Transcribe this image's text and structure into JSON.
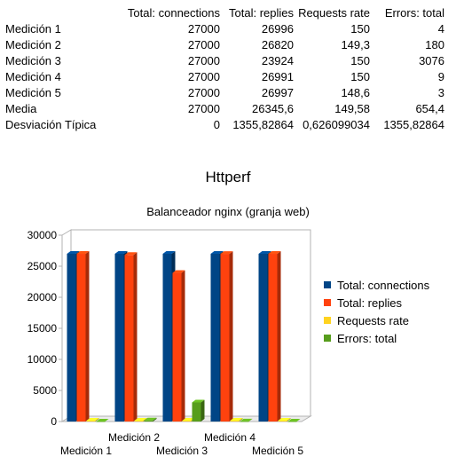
{
  "table": {
    "headers": [
      "",
      "Total: connections",
      "Total: replies",
      "Requests rate",
      "Errors: total"
    ],
    "rows": [
      [
        "Medición 1",
        "27000",
        "26996",
        "150",
        "4"
      ],
      [
        "Medición 2",
        "27000",
        "26820",
        "149,3",
        "180"
      ],
      [
        "Medición 3",
        "27000",
        "23924",
        "150",
        "3076"
      ],
      [
        "Medición 4",
        "27000",
        "26991",
        "150",
        "9"
      ],
      [
        "Medición 5",
        "27000",
        "26997",
        "148,6",
        "3"
      ],
      [
        "Media",
        "27000",
        "26345,6",
        "149,58",
        "654,4"
      ],
      [
        "Desviación Típica",
        "0",
        "1355,82864",
        "0,626099034",
        "1355,82864"
      ]
    ]
  },
  "chart_data": {
    "type": "bar",
    "title": "Httperf",
    "subtitle": "Balanceador nginx (granja web)",
    "categories": [
      "Medición 1",
      "Medición 2",
      "Medición 3",
      "Medición 4",
      "Medición 5"
    ],
    "series": [
      {
        "name": "Total: connections",
        "color": "#004586",
        "values": [
          27000,
          27000,
          27000,
          27000,
          27000
        ]
      },
      {
        "name": "Total: replies",
        "color": "#ff420e",
        "values": [
          26996,
          26820,
          23924,
          26991,
          26997
        ]
      },
      {
        "name": "Requests rate",
        "color": "#ffd320",
        "values": [
          150,
          149.3,
          150,
          150,
          148.6
        ]
      },
      {
        "name": "Errors: total",
        "color": "#579d1c",
        "values": [
          4,
          180,
          3076,
          9,
          3
        ]
      }
    ],
    "ylim": [
      0,
      30000
    ],
    "yticks": [
      0,
      5000,
      10000,
      15000,
      20000,
      25000,
      30000
    ],
    "xlabel": "",
    "ylabel": "",
    "grid": false,
    "legend_position": "right",
    "style": "3d-bar"
  }
}
